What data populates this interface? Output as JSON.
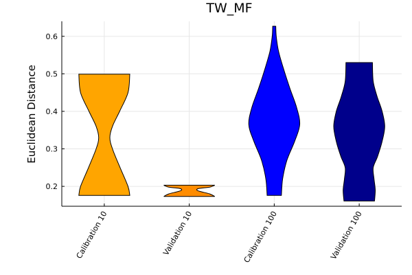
{
  "chart_data": {
    "type": "violin",
    "title": "TW_MF",
    "xlabel": "",
    "ylabel": "Euclidean Distance",
    "ylim": [
      0.147,
      0.64
    ],
    "yticks": [
      0.2,
      0.3,
      0.4,
      0.5,
      0.6
    ],
    "yticks_labels": [
      "0.2",
      "0.3",
      "0.4",
      "0.5",
      "0.6"
    ],
    "grid": true,
    "legend": "none",
    "categories": [
      "Calibration 10",
      "Validation 10",
      "Calibration 100",
      "Validation 100"
    ],
    "series": [
      {
        "color": "#FFA500",
        "min": 0.176,
        "max": 0.499,
        "profile": [
          [
            0.176,
            1.0
          ],
          [
            0.2,
            0.93
          ],
          [
            0.25,
            0.62
          ],
          [
            0.3,
            0.32
          ],
          [
            0.33,
            0.22
          ],
          [
            0.36,
            0.32
          ],
          [
            0.4,
            0.6
          ],
          [
            0.45,
            0.93
          ],
          [
            0.499,
            1.0
          ]
        ]
      },
      {
        "color": "#FF8C00",
        "min": 0.173,
        "max": 0.203,
        "profile": [
          [
            0.173,
            1.0
          ],
          [
            0.18,
            0.8
          ],
          [
            0.188,
            0.35
          ],
          [
            0.194,
            0.35
          ],
          [
            0.198,
            0.8
          ],
          [
            0.203,
            1.0
          ]
        ]
      },
      {
        "color": "#0000FF",
        "min": 0.176,
        "max": 0.627,
        "profile": [
          [
            0.176,
            0.28
          ],
          [
            0.22,
            0.33
          ],
          [
            0.27,
            0.5
          ],
          [
            0.32,
            0.8
          ],
          [
            0.365,
            1.0
          ],
          [
            0.41,
            0.88
          ],
          [
            0.46,
            0.62
          ],
          [
            0.51,
            0.38
          ],
          [
            0.56,
            0.17
          ],
          [
            0.6,
            0.08
          ],
          [
            0.627,
            0.06
          ]
        ]
      },
      {
        "color": "#00008B",
        "min": 0.161,
        "max": 0.53,
        "profile": [
          [
            0.161,
            0.6
          ],
          [
            0.19,
            0.63
          ],
          [
            0.22,
            0.58
          ],
          [
            0.25,
            0.55
          ],
          [
            0.28,
            0.72
          ],
          [
            0.32,
            0.9
          ],
          [
            0.36,
            1.0
          ],
          [
            0.4,
            0.9
          ],
          [
            0.44,
            0.7
          ],
          [
            0.48,
            0.55
          ],
          [
            0.53,
            0.52
          ]
        ]
      }
    ]
  }
}
